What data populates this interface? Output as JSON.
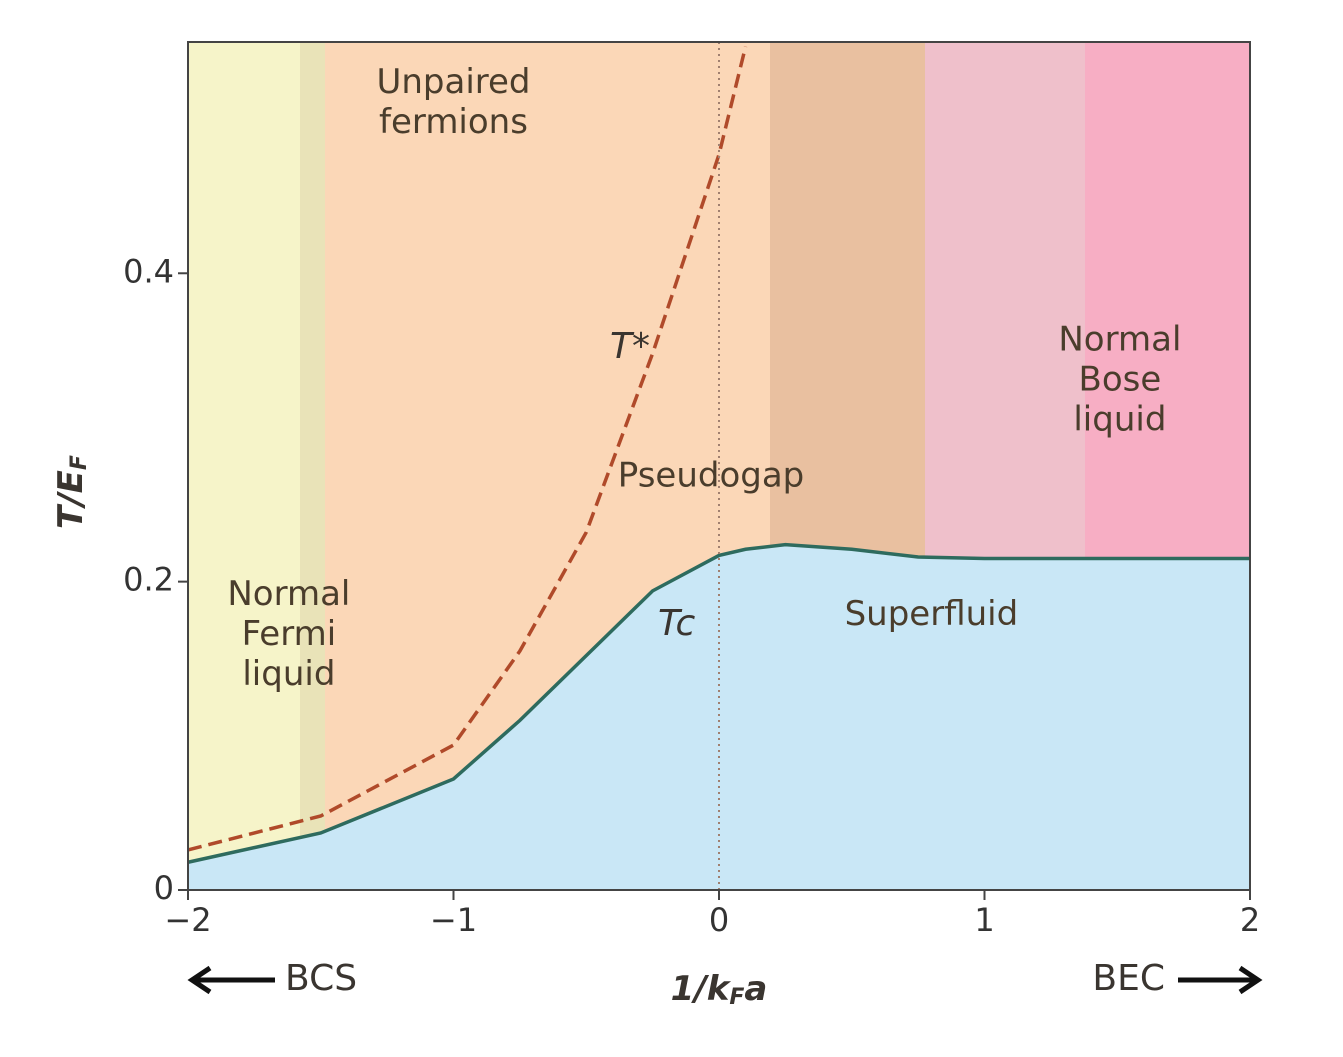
{
  "chart_data": {
    "type": "line",
    "ylabel": "T/E",
    "ylabel_sub": "F",
    "xlabel": "1/k",
    "xlabel_sub": "F",
    "xlabel_end": "a",
    "x": [
      -2,
      -1.5,
      -1,
      -0.75,
      -0.5,
      -0.25,
      0,
      0.1,
      0.25,
      0.5,
      0.75,
      1,
      1.5,
      2
    ],
    "series": [
      {
        "name": "T*",
        "color": "#b04a2a",
        "dashed": true,
        "values": [
          0.026,
          0.048,
          0.094,
          0.155,
          0.232,
          0.348,
          0.477,
          0.547,
          null,
          null,
          null,
          null,
          null,
          null
        ]
      },
      {
        "name": "Tc",
        "color": "#2e6b5e",
        "dashed": false,
        "fill": "#c9e7f6",
        "values": [
          0.018,
          0.037,
          0.072,
          0.11,
          0.152,
          0.194,
          0.217,
          0.221,
          0.224,
          0.221,
          0.216,
          0.215,
          0.215,
          0.215
        ]
      }
    ],
    "xlim": [
      -2,
      2
    ],
    "xticks": [
      {
        "value": -2,
        "label": "−2"
      },
      {
        "value": -1,
        "label": "−1"
      },
      0,
      1,
      2
    ],
    "ylim": [
      0,
      0.55
    ],
    "yticks": [
      0,
      0.2,
      0.4
    ],
    "annotations": [
      {
        "lines": [
          "Unpaired",
          "fermions"
        ],
        "x": -1.0,
        "y": 0.51
      },
      {
        "lines": [
          "Normal",
          "Fermi",
          "liquid"
        ],
        "x": -1.62,
        "y": 0.165
      },
      {
        "lines": [
          "Pseudogap"
        ],
        "x": -0.03,
        "y": 0.268
      },
      {
        "lines": [
          "Normal",
          "Bose",
          "liquid"
        ],
        "x": 1.51,
        "y": 0.33
      },
      {
        "lines": [
          "Superfluid"
        ],
        "x": 0.8,
        "y": 0.178
      }
    ],
    "left_arrow_label": "BCS",
    "right_arrow_label": "BEC"
  }
}
